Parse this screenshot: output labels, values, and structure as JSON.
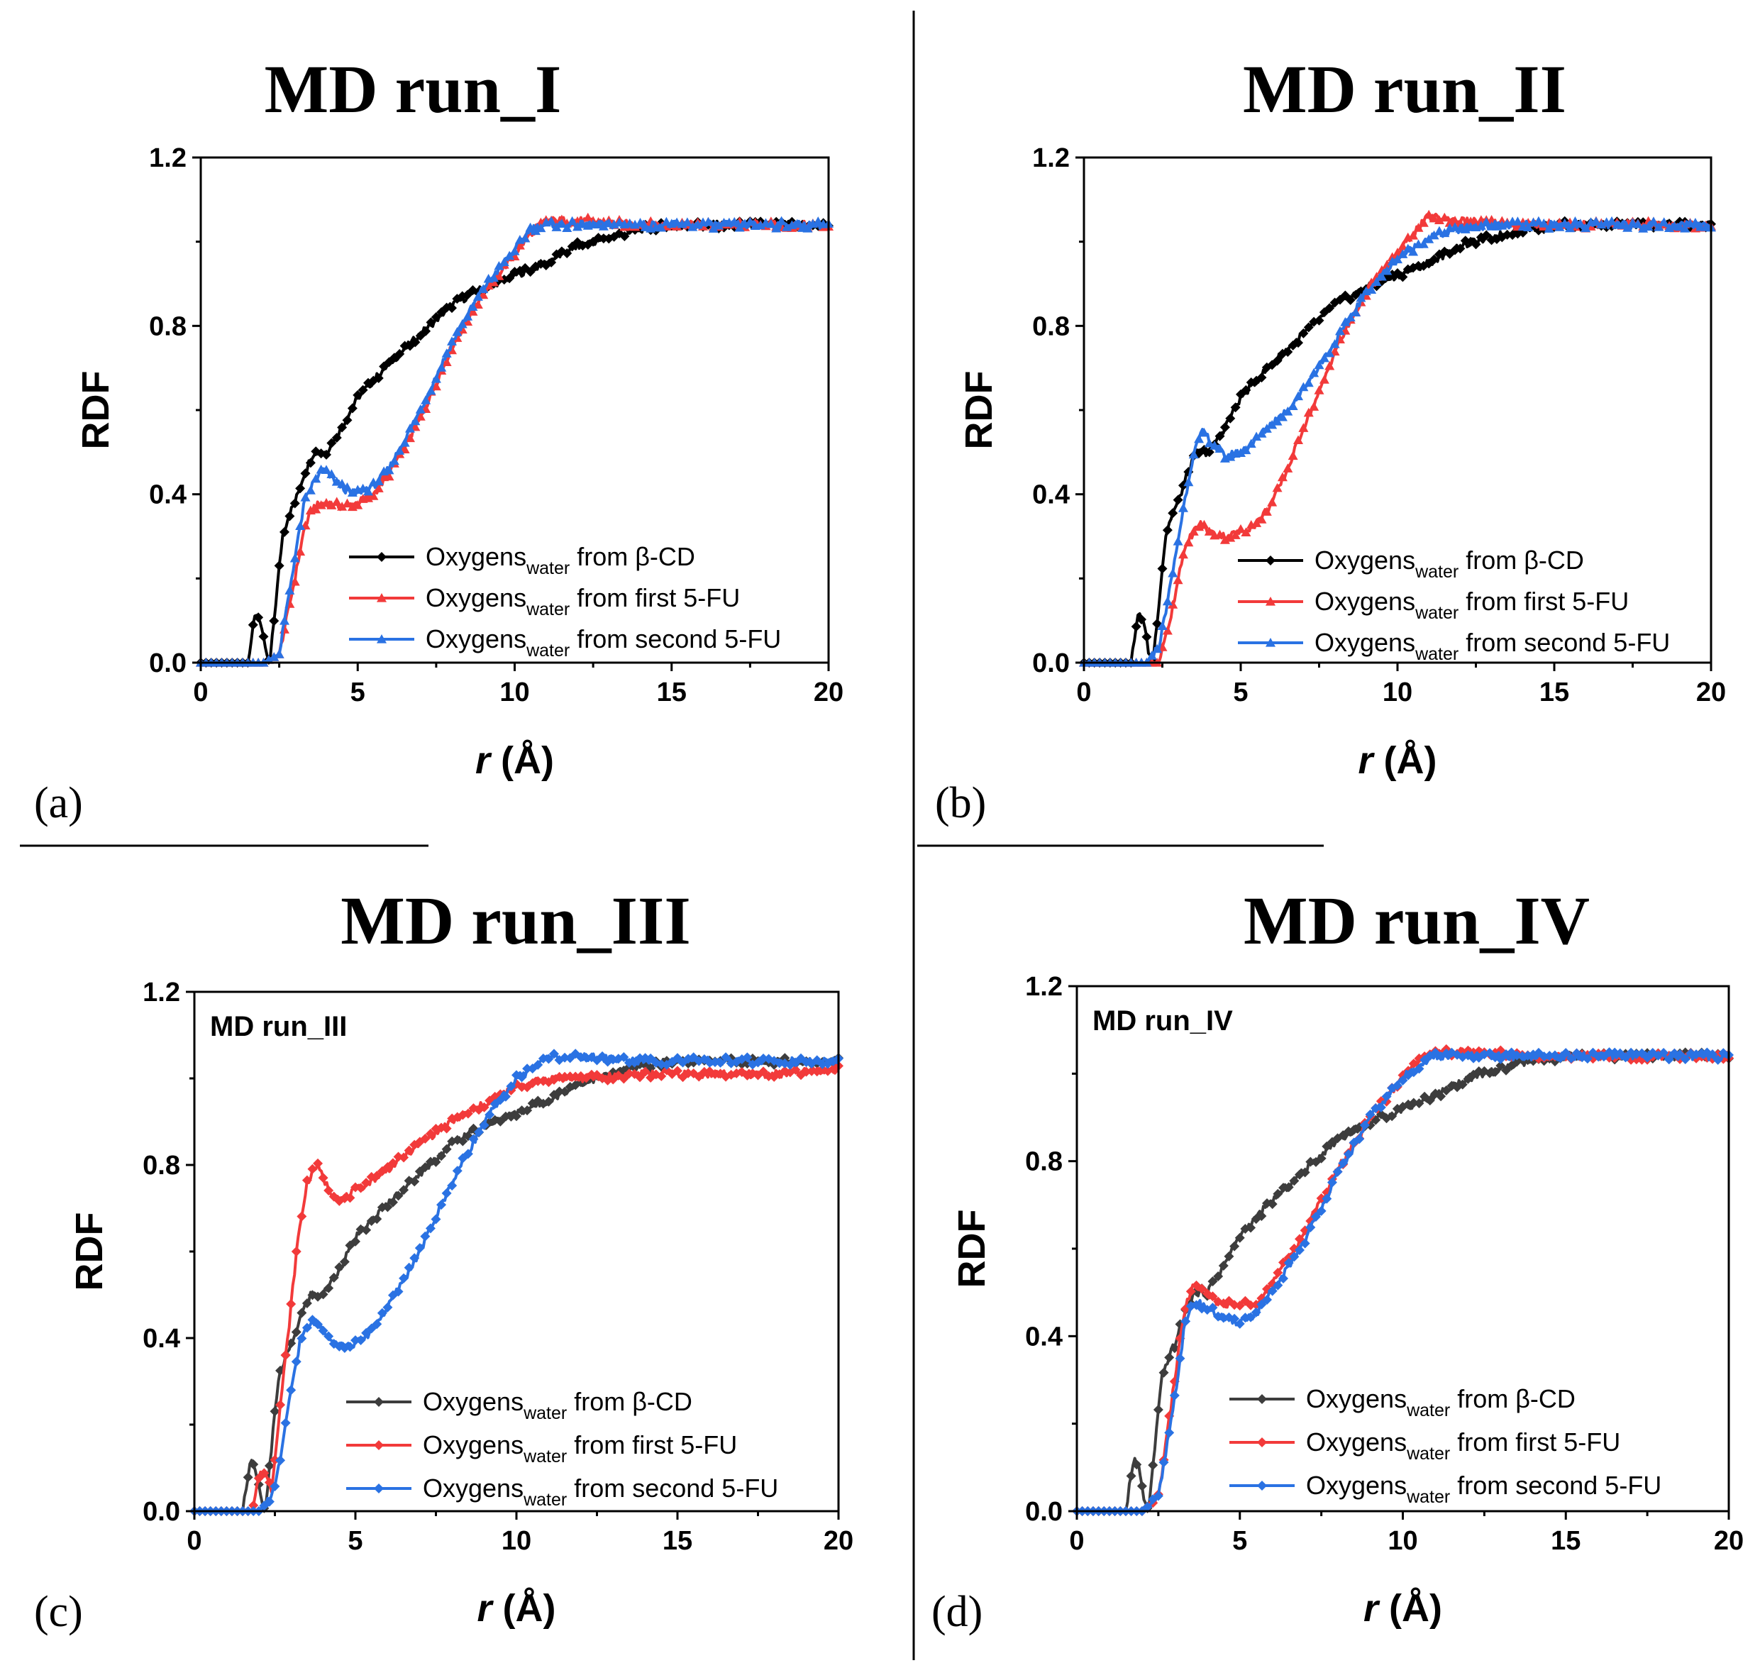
{
  "figure": {
    "separators": true
  },
  "chart_data": [
    {
      "type": "line",
      "panel_label": "(a)",
      "title": "MD run_I",
      "inner_label": "",
      "xlabel_var": "r",
      "xlabel_unit": " (Å)",
      "ylabel": "RDF",
      "xlim": [
        0,
        20
      ],
      "ylim": [
        0,
        1.2
      ],
      "xticks": [
        0,
        5,
        10,
        15,
        20
      ],
      "yticks": [
        0.0,
        0.4,
        0.8,
        1.2
      ],
      "ytick_labels": [
        "0.0",
        "0.4",
        "0.8",
        "1.2"
      ],
      "legend_position": "lower-right",
      "series": [
        {
          "name": "Oxygens",
          "sub": "water",
          "suffix": " from β-CD",
          "color": "#000000",
          "marker": "diamond",
          "x": [
            0,
            1.5,
            1.6,
            1.75,
            1.9,
            2.05,
            2.2,
            2.4,
            2.6,
            2.8,
            3.0,
            3.3,
            3.6,
            4.0,
            4.5,
            5.0,
            6.0,
            7.0,
            8.0,
            9.0,
            10.0,
            11.0,
            12.0,
            13.0,
            14.0,
            15.0,
            16.0,
            18.0,
            20.0
          ],
          "y": [
            0,
            0,
            0.05,
            0.12,
            0.1,
            0.03,
            0.0,
            0.15,
            0.3,
            0.35,
            0.38,
            0.45,
            0.5,
            0.5,
            0.56,
            0.63,
            0.71,
            0.78,
            0.85,
            0.89,
            0.92,
            0.95,
            0.99,
            1.01,
            1.03,
            1.04,
            1.04,
            1.04,
            1.04
          ]
        },
        {
          "name": "Oxygens",
          "sub": "water",
          "suffix": " from first 5-FU",
          "color": "#f23a3a",
          "marker": "triangle",
          "x": [
            0,
            2.0,
            2.5,
            3.0,
            3.3,
            3.6,
            4.0,
            4.5,
            5.0,
            5.5,
            6.0,
            7.0,
            8.0,
            9.0,
            10.0,
            10.5,
            11.0,
            12.0,
            14.0,
            16.0,
            18.0,
            20.0
          ],
          "y": [
            0,
            0,
            0.02,
            0.2,
            0.32,
            0.37,
            0.38,
            0.37,
            0.38,
            0.4,
            0.45,
            0.58,
            0.75,
            0.88,
            0.97,
            1.02,
            1.05,
            1.05,
            1.04,
            1.04,
            1.04,
            1.04
          ]
        },
        {
          "name": "Oxygens",
          "sub": "water",
          "suffix": " from second 5-FU",
          "color": "#2a72e3",
          "marker": "triangle",
          "x": [
            0,
            2.0,
            2.5,
            3.0,
            3.3,
            3.6,
            3.9,
            4.3,
            4.8,
            5.5,
            6.0,
            7.0,
            8.0,
            9.0,
            10.0,
            10.5,
            11.0,
            12.0,
            14.0,
            16.0,
            18.0,
            20.0
          ],
          "y": [
            0,
            0,
            0.02,
            0.25,
            0.38,
            0.43,
            0.46,
            0.43,
            0.4,
            0.42,
            0.46,
            0.6,
            0.76,
            0.89,
            0.98,
            1.03,
            1.04,
            1.04,
            1.04,
            1.04,
            1.04,
            1.04
          ]
        }
      ]
    },
    {
      "type": "line",
      "panel_label": "(b)",
      "title": "MD run_II",
      "inner_label": "",
      "xlabel_var": "r",
      "xlabel_unit": " (Å)",
      "ylabel": "RDF",
      "xlim": [
        0,
        20
      ],
      "ylim": [
        0,
        1.2
      ],
      "xticks": [
        0,
        5,
        10,
        15,
        20
      ],
      "yticks": [
        0.0,
        0.4,
        0.8,
        1.2
      ],
      "ytick_labels": [
        "0.0",
        "0.4",
        "0.8",
        "1.2"
      ],
      "legend_position": "lower-right",
      "series": [
        {
          "name": "Oxygens",
          "sub": "water",
          "suffix": " from β-CD",
          "color": "#000000",
          "marker": "diamond",
          "x": [
            0,
            1.5,
            1.6,
            1.75,
            1.9,
            2.05,
            2.2,
            2.4,
            2.6,
            2.8,
            3.0,
            3.3,
            3.6,
            4.0,
            4.5,
            5.0,
            6.0,
            7.0,
            8.0,
            9.0,
            10.0,
            11.0,
            12.0,
            13.0,
            14.0,
            15.0,
            16.0,
            18.0,
            20.0
          ],
          "y": [
            0,
            0,
            0.05,
            0.12,
            0.1,
            0.03,
            0.0,
            0.15,
            0.3,
            0.35,
            0.38,
            0.45,
            0.5,
            0.5,
            0.56,
            0.63,
            0.71,
            0.78,
            0.85,
            0.89,
            0.92,
            0.95,
            0.99,
            1.01,
            1.03,
            1.04,
            1.04,
            1.04,
            1.04
          ]
        },
        {
          "name": "Oxygens",
          "sub": "water",
          "suffix": " from first 5-FU",
          "color": "#f23a3a",
          "marker": "triangle",
          "x": [
            0,
            2.4,
            2.8,
            3.1,
            3.4,
            3.7,
            4.0,
            4.5,
            5.0,
            5.5,
            6.0,
            6.5,
            7.0,
            7.5,
            8.0,
            9.0,
            10.0,
            10.5,
            11.0,
            12.0,
            14.0,
            16.0,
            18.0,
            20.0
          ],
          "y": [
            0,
            0,
            0.12,
            0.24,
            0.3,
            0.33,
            0.31,
            0.3,
            0.31,
            0.33,
            0.38,
            0.46,
            0.56,
            0.64,
            0.74,
            0.88,
            0.97,
            1.02,
            1.06,
            1.05,
            1.04,
            1.04,
            1.04,
            1.04
          ]
        },
        {
          "name": "Oxygens",
          "sub": "water",
          "suffix": " from second 5-FU",
          "color": "#2a72e3",
          "marker": "triangle",
          "x": [
            0,
            2.0,
            2.4,
            2.8,
            3.2,
            3.5,
            3.8,
            4.1,
            4.5,
            5.0,
            5.5,
            6.0,
            6.5,
            7.0,
            8.0,
            9.0,
            10.0,
            11.0,
            12.0,
            13.0,
            14.0,
            16.0,
            18.0,
            20.0
          ],
          "y": [
            0,
            0,
            0.04,
            0.2,
            0.38,
            0.5,
            0.55,
            0.52,
            0.49,
            0.5,
            0.53,
            0.57,
            0.6,
            0.65,
            0.76,
            0.88,
            0.96,
            1.01,
            1.03,
            1.04,
            1.04,
            1.04,
            1.04,
            1.04
          ]
        }
      ]
    },
    {
      "type": "line",
      "panel_label": "(c)",
      "title": "MD run_III",
      "inner_label": "MD run_III",
      "xlabel_var": "r",
      "xlabel_unit": " (Å)",
      "ylabel": "RDF",
      "xlim": [
        0,
        20
      ],
      "ylim": [
        0,
        1.2
      ],
      "xticks": [
        0,
        5,
        10,
        15,
        20
      ],
      "yticks": [
        0.0,
        0.4,
        0.8,
        1.2
      ],
      "ytick_labels": [
        "0.0",
        "0.4",
        "0.8",
        "1.2"
      ],
      "legend_position": "lower-right",
      "series": [
        {
          "name": "Oxygens",
          "sub": "water",
          "suffix": " from β-CD",
          "color": "#3d3d3d",
          "marker": "diamond",
          "x": [
            0,
            1.5,
            1.6,
            1.75,
            1.9,
            2.05,
            2.2,
            2.4,
            2.6,
            2.8,
            3.0,
            3.3,
            3.6,
            4.0,
            4.5,
            5.0,
            6.0,
            7.0,
            8.0,
            9.0,
            10.0,
            11.0,
            12.0,
            13.0,
            14.0,
            15.0,
            16.0,
            18.0,
            20.0
          ],
          "y": [
            0,
            0,
            0.05,
            0.12,
            0.1,
            0.03,
            0.0,
            0.15,
            0.3,
            0.35,
            0.38,
            0.45,
            0.5,
            0.5,
            0.56,
            0.63,
            0.71,
            0.78,
            0.85,
            0.89,
            0.92,
            0.95,
            0.99,
            1.01,
            1.03,
            1.04,
            1.04,
            1.04,
            1.04
          ]
        },
        {
          "name": "Oxygens",
          "sub": "water",
          "suffix": " from first 5-FU",
          "color": "#f23a3a",
          "marker": "diamond",
          "x": [
            0,
            1.8,
            2.0,
            2.2,
            2.4,
            2.6,
            2.9,
            3.2,
            3.5,
            3.8,
            4.2,
            4.6,
            5.0,
            6.0,
            7.0,
            8.0,
            9.0,
            10.0,
            11.0,
            12.0,
            14.0,
            16.0,
            18.0,
            20.0
          ],
          "y": [
            0,
            0,
            0.08,
            0.09,
            0.05,
            0.2,
            0.4,
            0.62,
            0.76,
            0.8,
            0.74,
            0.72,
            0.74,
            0.79,
            0.85,
            0.9,
            0.94,
            0.98,
            1.0,
            1.0,
            1.01,
            1.01,
            1.01,
            1.02
          ]
        },
        {
          "name": "Oxygens",
          "sub": "water",
          "suffix": " from second 5-FU",
          "color": "#2a72e3",
          "marker": "diamond",
          "x": [
            0,
            2.0,
            2.4,
            2.7,
            3.0,
            3.3,
            3.7,
            4.0,
            4.4,
            4.8,
            5.3,
            6.0,
            7.0,
            8.0,
            9.0,
            10.0,
            11.0,
            12.0,
            14.0,
            16.0,
            18.0,
            20.0
          ],
          "y": [
            0,
            0,
            0.03,
            0.13,
            0.28,
            0.4,
            0.44,
            0.42,
            0.39,
            0.38,
            0.4,
            0.47,
            0.6,
            0.76,
            0.9,
            1.0,
            1.05,
            1.05,
            1.04,
            1.04,
            1.04,
            1.04
          ]
        }
      ]
    },
    {
      "type": "line",
      "panel_label": "(d)",
      "title": "MD run_IV",
      "inner_label": "MD run_IV",
      "xlabel_var": "r",
      "xlabel_unit": " (Å)",
      "ylabel": "RDF",
      "xlim": [
        0,
        20
      ],
      "ylim": [
        0,
        1.2
      ],
      "xticks": [
        0,
        5,
        10,
        15,
        20
      ],
      "yticks": [
        0.0,
        0.4,
        0.8,
        1.2
      ],
      "ytick_labels": [
        "0.0",
        "0.4",
        "0.8",
        "1.2"
      ],
      "legend_position": "lower-right",
      "series": [
        {
          "name": "Oxygens",
          "sub": "water",
          "suffix": " from β-CD",
          "color": "#3d3d3d",
          "marker": "diamond",
          "x": [
            0,
            1.5,
            1.6,
            1.75,
            1.9,
            2.05,
            2.2,
            2.4,
            2.6,
            2.8,
            3.0,
            3.3,
            3.6,
            4.0,
            4.5,
            5.0,
            6.0,
            7.0,
            8.0,
            9.0,
            10.0,
            11.0,
            12.0,
            13.0,
            14.0,
            15.0,
            16.0,
            18.0,
            20.0
          ],
          "y": [
            0,
            0,
            0.05,
            0.12,
            0.1,
            0.03,
            0.0,
            0.15,
            0.3,
            0.35,
            0.38,
            0.45,
            0.5,
            0.5,
            0.56,
            0.63,
            0.71,
            0.78,
            0.85,
            0.89,
            0.92,
            0.95,
            0.99,
            1.01,
            1.03,
            1.04,
            1.04,
            1.04,
            1.04
          ]
        },
        {
          "name": "Oxygens",
          "sub": "water",
          "suffix": " from first 5-FU",
          "color": "#f23a3a",
          "marker": "diamond",
          "x": [
            0,
            2.0,
            2.5,
            3.0,
            3.3,
            3.6,
            3.9,
            4.3,
            4.8,
            5.5,
            6.0,
            7.0,
            8.0,
            9.0,
            10.0,
            10.5,
            11.0,
            12.0,
            14.0,
            16.0,
            18.0,
            20.0
          ],
          "y": [
            0,
            0,
            0.03,
            0.3,
            0.46,
            0.52,
            0.5,
            0.48,
            0.47,
            0.48,
            0.52,
            0.64,
            0.78,
            0.9,
            0.99,
            1.03,
            1.05,
            1.05,
            1.04,
            1.04,
            1.04,
            1.04
          ]
        },
        {
          "name": "Oxygens",
          "sub": "water",
          "suffix": " from second 5-FU",
          "color": "#2a72e3",
          "marker": "diamond",
          "x": [
            0,
            2.0,
            2.5,
            3.0,
            3.3,
            3.6,
            3.9,
            4.3,
            4.8,
            5.5,
            6.0,
            7.0,
            8.0,
            9.0,
            10.0,
            10.5,
            11.0,
            12.0,
            14.0,
            16.0,
            18.0,
            20.0
          ],
          "y": [
            0,
            0,
            0.03,
            0.26,
            0.42,
            0.48,
            0.47,
            0.45,
            0.43,
            0.45,
            0.5,
            0.62,
            0.77,
            0.9,
            0.99,
            1.02,
            1.04,
            1.04,
            1.04,
            1.04,
            1.04,
            1.04
          ]
        }
      ]
    }
  ]
}
